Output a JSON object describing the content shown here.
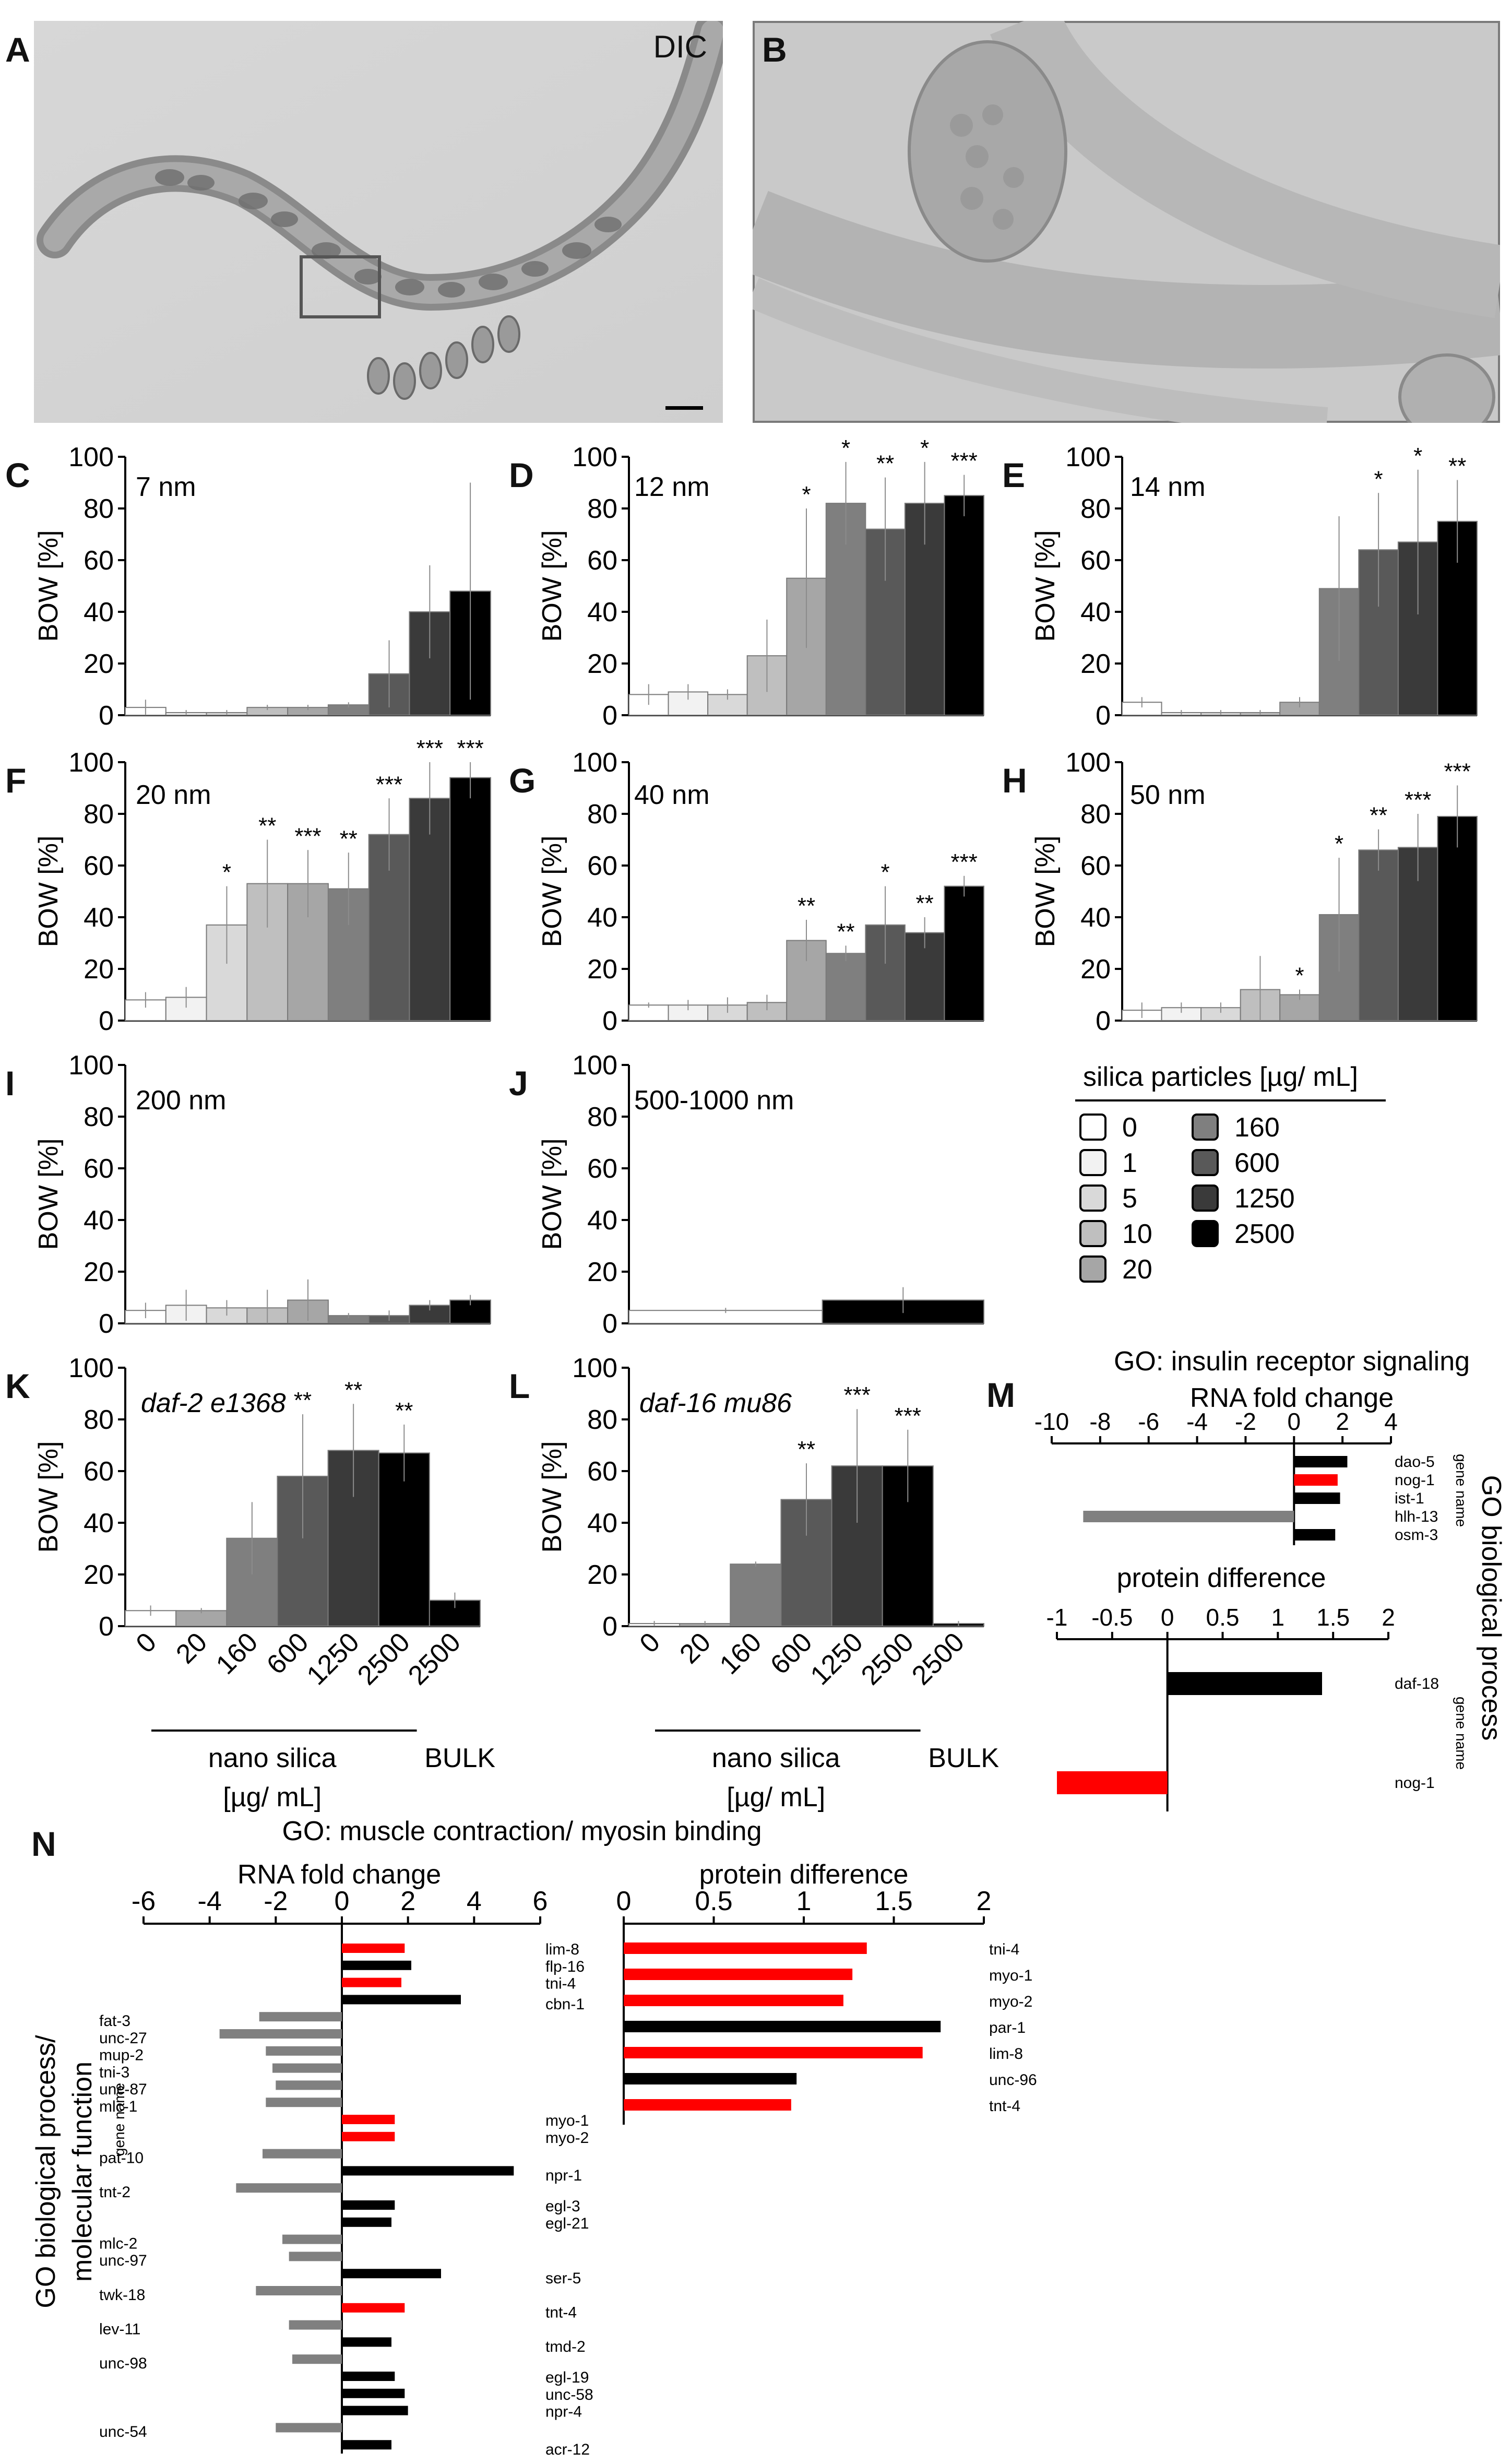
{
  "photos": {
    "A": {
      "label": "A",
      "caption": "DIC"
    },
    "B": {
      "label": "B"
    }
  },
  "legend": {
    "title": "silica particles [µg/ mL]",
    "items": [
      {
        "value": "0",
        "color": "#ffffff"
      },
      {
        "value": "1",
        "color": "#f2f2f2"
      },
      {
        "value": "5",
        "color": "#d9d9d9"
      },
      {
        "value": "10",
        "color": "#bfbfbf"
      },
      {
        "value": "20",
        "color": "#a6a6a6"
      },
      {
        "value": "160",
        "color": "#7f7f7f"
      },
      {
        "value": "600",
        "color": "#595959"
      },
      {
        "value": "1250",
        "color": "#3a3a3a"
      },
      {
        "value": "2500",
        "color": "#000000"
      }
    ]
  },
  "chart_data": [
    {
      "id": "C",
      "type": "bar",
      "title": "7 nm",
      "italic": false,
      "ylabel": "BOW [%]",
      "ylim": [
        0,
        100
      ],
      "yticks": [
        0,
        20,
        40,
        60,
        80,
        100
      ],
      "values": [
        3,
        1,
        1,
        3,
        3,
        4,
        16,
        40,
        48
      ],
      "errors": [
        3,
        1,
        1,
        1,
        1,
        1,
        13,
        18,
        42
      ],
      "colors": [
        "#ffffff",
        "#f2f2f2",
        "#d9d9d9",
        "#bfbfbf",
        "#a6a6a6",
        "#7f7f7f",
        "#595959",
        "#3a3a3a",
        "#000000"
      ],
      "stars": [
        "",
        "",
        "",
        "",
        "",
        "",
        "",
        "",
        ""
      ]
    },
    {
      "id": "D",
      "type": "bar",
      "title": "12 nm",
      "italic": false,
      "ylabel": "BOW [%]",
      "ylim": [
        0,
        100
      ],
      "yticks": [
        0,
        20,
        40,
        60,
        80,
        100
      ],
      "values": [
        8,
        9,
        8,
        23,
        53,
        82,
        72,
        82,
        85
      ],
      "errors": [
        4,
        3,
        2,
        14,
        27,
        16,
        20,
        16,
        8
      ],
      "colors": [
        "#ffffff",
        "#f2f2f2",
        "#d9d9d9",
        "#bfbfbf",
        "#a6a6a6",
        "#7f7f7f",
        "#595959",
        "#3a3a3a",
        "#000000"
      ],
      "stars": [
        "",
        "",
        "",
        "",
        "*",
        "*",
        "**",
        "*",
        "***"
      ]
    },
    {
      "id": "E",
      "type": "bar",
      "title": "14 nm",
      "italic": false,
      "ylabel": "BOW [%]",
      "ylim": [
        0,
        100
      ],
      "yticks": [
        0,
        20,
        40,
        60,
        80,
        100
      ],
      "values": [
        5,
        1,
        1,
        1,
        5,
        49,
        64,
        67,
        75
      ],
      "errors": [
        2,
        1,
        1,
        1,
        2,
        28,
        22,
        28,
        16
      ],
      "colors": [
        "#ffffff",
        "#f2f2f2",
        "#d9d9d9",
        "#bfbfbf",
        "#a6a6a6",
        "#7f7f7f",
        "#595959",
        "#3a3a3a",
        "#000000"
      ],
      "stars": [
        "",
        "",
        "",
        "",
        "",
        "",
        "*",
        "*",
        "**"
      ]
    },
    {
      "id": "F",
      "type": "bar",
      "title": "20 nm",
      "italic": false,
      "ylabel": "BOW [%]",
      "ylim": [
        0,
        100
      ],
      "yticks": [
        0,
        20,
        40,
        60,
        80,
        100
      ],
      "values": [
        8,
        9,
        37,
        53,
        53,
        51,
        72,
        86,
        94
      ],
      "errors": [
        3,
        4,
        15,
        17,
        13,
        14,
        14,
        14,
        8
      ],
      "colors": [
        "#ffffff",
        "#f2f2f2",
        "#d9d9d9",
        "#bfbfbf",
        "#a6a6a6",
        "#7f7f7f",
        "#595959",
        "#3a3a3a",
        "#000000"
      ],
      "stars": [
        "",
        "",
        "*",
        "**",
        "***",
        "**",
        "***",
        "***",
        "***"
      ]
    },
    {
      "id": "G",
      "type": "bar",
      "title": "40 nm",
      "italic": false,
      "ylabel": "BOW [%]",
      "ylim": [
        0,
        100
      ],
      "yticks": [
        0,
        20,
        40,
        60,
        80,
        100
      ],
      "values": [
        6,
        6,
        6,
        7,
        31,
        26,
        37,
        34,
        52
      ],
      "errors": [
        1,
        2,
        3,
        3,
        8,
        3,
        15,
        6,
        4
      ],
      "colors": [
        "#ffffff",
        "#f2f2f2",
        "#d9d9d9",
        "#bfbfbf",
        "#a6a6a6",
        "#7f7f7f",
        "#595959",
        "#3a3a3a",
        "#000000"
      ],
      "stars": [
        "",
        "",
        "",
        "",
        "**",
        "**",
        "*",
        "**",
        "***"
      ]
    },
    {
      "id": "H",
      "type": "bar",
      "title": "50 nm",
      "italic": false,
      "ylabel": "BOW [%]",
      "ylim": [
        0,
        100
      ],
      "yticks": [
        0,
        20,
        40,
        60,
        80,
        100
      ],
      "values": [
        4,
        5,
        5,
        12,
        10,
        41,
        66,
        67,
        79
      ],
      "errors": [
        3,
        2,
        2,
        13,
        2,
        22,
        8,
        13,
        12
      ],
      "colors": [
        "#ffffff",
        "#f2f2f2",
        "#d9d9d9",
        "#bfbfbf",
        "#a6a6a6",
        "#7f7f7f",
        "#595959",
        "#3a3a3a",
        "#000000"
      ],
      "stars": [
        "",
        "",
        "",
        "",
        "*",
        "*",
        "**",
        "***",
        "***"
      ]
    },
    {
      "id": "I",
      "type": "bar",
      "title": "200 nm",
      "italic": false,
      "ylabel": "BOW [%]",
      "ylim": [
        0,
        100
      ],
      "yticks": [
        0,
        20,
        40,
        60,
        80,
        100
      ],
      "values": [
        5,
        7,
        6,
        6,
        9,
        3,
        3,
        7,
        9
      ],
      "errors": [
        3,
        6,
        3,
        7,
        8,
        1,
        2,
        2,
        2
      ],
      "colors": [
        "#ffffff",
        "#f2f2f2",
        "#d9d9d9",
        "#bfbfbf",
        "#a6a6a6",
        "#7f7f7f",
        "#595959",
        "#3a3a3a",
        "#000000"
      ],
      "stars": [
        "",
        "",
        "",
        "",
        "",
        "",
        "",
        "",
        ""
      ]
    },
    {
      "id": "J",
      "type": "bar",
      "title": "500-1000 nm",
      "italic": false,
      "ylabel": "BOW [%]",
      "ylim": [
        0,
        100
      ],
      "yticks": [
        0,
        20,
        40,
        60,
        80,
        100
      ],
      "values": [
        5,
        9
      ],
      "errors": [
        1,
        5
      ],
      "colors": [
        "#ffffff",
        "#000000"
      ],
      "stars": [
        "",
        ""
      ]
    },
    {
      "id": "K",
      "type": "bar",
      "title": "daf-2 e1368",
      "italic": true,
      "ylabel": "BOW [%]",
      "ylim": [
        0,
        100
      ],
      "yticks": [
        0,
        20,
        40,
        60,
        80,
        100
      ],
      "categories": [
        "0",
        "20",
        "160",
        "600",
        "1250",
        "2500",
        "2500"
      ],
      "values": [
        6,
        6,
        34,
        58,
        68,
        67,
        10
      ],
      "errors": [
        2,
        1,
        14,
        24,
        18,
        11,
        3
      ],
      "colors": [
        "#ffffff",
        "#a6a6a6",
        "#7f7f7f",
        "#595959",
        "#3a3a3a",
        "#000000",
        "#000000"
      ],
      "stars": [
        "",
        "",
        "",
        "**",
        "**",
        "**",
        ""
      ],
      "group_nano": "nano silica",
      "group_bulk": "BULK",
      "units": "[µg/ mL]"
    },
    {
      "id": "L",
      "type": "bar",
      "title": "daf-16 mu86",
      "italic": true,
      "ylabel": "BOW [%]",
      "ylim": [
        0,
        100
      ],
      "yticks": [
        0,
        20,
        40,
        60,
        80,
        100
      ],
      "categories": [
        "0",
        "20",
        "160",
        "600",
        "1250",
        "2500",
        "2500"
      ],
      "values": [
        1,
        1,
        24,
        49,
        62,
        62,
        1
      ],
      "errors": [
        1,
        1,
        1,
        14,
        22,
        14,
        1
      ],
      "colors": [
        "#ffffff",
        "#a6a6a6",
        "#7f7f7f",
        "#595959",
        "#3a3a3a",
        "#000000",
        "#000000"
      ],
      "stars": [
        "",
        "",
        "",
        "**",
        "***",
        "***",
        ""
      ],
      "group_nano": "nano silica",
      "group_bulk": "BULK",
      "units": "[µg/ mL]"
    },
    {
      "id": "M-rna",
      "type": "bar-horizontal",
      "panel_title": "GO: insulin receptor signaling",
      "title": "RNA fold change",
      "xlim": [
        -10,
        4
      ],
      "xticks": [
        -10,
        -8,
        -6,
        -4,
        -2,
        0,
        2,
        4
      ],
      "side_label": "gene name",
      "genes": [
        "dao-5",
        "nog-1",
        "ist-1",
        "hlh-13",
        "osm-3"
      ],
      "values": [
        2.2,
        1.8,
        1.9,
        -8.7,
        1.7
      ],
      "colors": [
        "#000000",
        "#ff0000",
        "#000000",
        "#808080",
        "#000000"
      ]
    },
    {
      "id": "M-protein",
      "type": "bar-horizontal",
      "title": "protein difference",
      "xlim": [
        -1,
        2
      ],
      "xticks": [
        -1,
        -0.5,
        0,
        0.5,
        1,
        1.5,
        2
      ],
      "side_label": "gene name",
      "genes": [
        "daf-18",
        "nog-1"
      ],
      "values": [
        1.4,
        -1.0
      ],
      "colors": [
        "#000000",
        "#ff0000"
      ],
      "vertical_label": "GO biological process"
    },
    {
      "id": "N-rna",
      "type": "bar-horizontal",
      "panel_title": "GO: muscle contraction/ myosin binding",
      "title": "RNA fold change",
      "xlim": [
        -6,
        6
      ],
      "xticks": [
        -6,
        -4,
        -2,
        0,
        2,
        4,
        6
      ],
      "side_label": "gene name",
      "vertical_label_1": "GO biological process/",
      "vertical_label_2": "molecular function",
      "bars": [
        {
          "value": 1.9,
          "color": "#ff0000"
        },
        {
          "value": 2.1,
          "color": "#000000"
        },
        {
          "value": 1.8,
          "color": "#ff0000"
        },
        {
          "value": 3.6,
          "color": "#000000"
        },
        {
          "value": -2.5,
          "color": "#808080"
        },
        {
          "value": -3.7,
          "color": "#808080"
        },
        {
          "value": -2.3,
          "color": "#808080"
        },
        {
          "value": -2.1,
          "color": "#808080"
        },
        {
          "value": -2.0,
          "color": "#808080"
        },
        {
          "value": -2.3,
          "color": "#808080"
        },
        {
          "value": 1.6,
          "color": "#ff0000"
        },
        {
          "value": 1.6,
          "color": "#ff0000"
        },
        {
          "value": -2.4,
          "color": "#808080"
        },
        {
          "value": 5.2,
          "color": "#000000"
        },
        {
          "value": -3.2,
          "color": "#808080"
        },
        {
          "value": 1.6,
          "color": "#000000"
        },
        {
          "value": 1.5,
          "color": "#000000"
        },
        {
          "value": -1.8,
          "color": "#808080"
        },
        {
          "value": -1.6,
          "color": "#808080"
        },
        {
          "value": 3.0,
          "color": "#000000"
        },
        {
          "value": -2.6,
          "color": "#808080"
        },
        {
          "value": 1.9,
          "color": "#ff0000"
        },
        {
          "value": -1.6,
          "color": "#808080"
        },
        {
          "value": 1.5,
          "color": "#000000"
        },
        {
          "value": -1.5,
          "color": "#808080"
        },
        {
          "value": 1.6,
          "color": "#000000"
        },
        {
          "value": 1.9,
          "color": "#000000"
        },
        {
          "value": 2.0,
          "color": "#000000"
        },
        {
          "value": -2.0,
          "color": "#808080"
        },
        {
          "value": 1.5,
          "color": "#000000"
        }
      ],
      "left_labels": [
        {
          "text": "fat-3",
          "at": 4.3
        },
        {
          "text": "unc-27",
          "at": 5.3
        },
        {
          "text": "mup-2",
          "at": 6.3
        },
        {
          "text": "tni-3",
          "at": 7.3
        },
        {
          "text": "unc-87",
          "at": 8.3
        },
        {
          "text": "mlc-1",
          "at": 9.3
        },
        {
          "text": "pat-10",
          "at": 12.3
        },
        {
          "text": "tnt-2",
          "at": 14.3
        },
        {
          "text": "mlc-2",
          "at": 17.3
        },
        {
          "text": "unc-97",
          "at": 18.3
        },
        {
          "text": "twk-18",
          "at": 20.3
        },
        {
          "text": "lev-11",
          "at": 22.3
        },
        {
          "text": "unc-98",
          "at": 24.3
        },
        {
          "text": "unc-54",
          "at": 28.3
        }
      ],
      "right_labels": [
        {
          "text": "lim-8",
          "at": 0
        },
        {
          "text": "flp-16",
          "at": 1
        },
        {
          "text": "tni-4",
          "at": 2
        },
        {
          "text": "cbn-1",
          "at": 3.2
        },
        {
          "text": "myo-1",
          "at": 10
        },
        {
          "text": "myo-2",
          "at": 11
        },
        {
          "text": "npr-1",
          "at": 13.2
        },
        {
          "text": "egl-3",
          "at": 15
        },
        {
          "text": "egl-21",
          "at": 16
        },
        {
          "text": "ser-5",
          "at": 19.2
        },
        {
          "text": "tnt-4",
          "at": 21.2
        },
        {
          "text": "tmd-2",
          "at": 23.2
        },
        {
          "text": "egl-19",
          "at": 25
        },
        {
          "text": "unc-58",
          "at": 26
        },
        {
          "text": "npr-4",
          "at": 27
        },
        {
          "text": "acr-12",
          "at": 29.2
        }
      ]
    },
    {
      "id": "N-protein",
      "type": "bar-horizontal",
      "title": "protein difference",
      "xlim": [
        0,
        2
      ],
      "xticks": [
        0,
        0.5,
        1,
        1.5,
        2
      ],
      "genes": [
        "tni-4",
        "myo-1",
        "myo-2",
        "par-1",
        "lim-8",
        "unc-96",
        "tnt-4"
      ],
      "values": [
        1.35,
        1.27,
        1.22,
        1.76,
        1.66,
        0.96,
        0.93
      ],
      "colors": [
        "#ff0000",
        "#ff0000",
        "#ff0000",
        "#000000",
        "#ff0000",
        "#000000",
        "#ff0000"
      ]
    }
  ]
}
